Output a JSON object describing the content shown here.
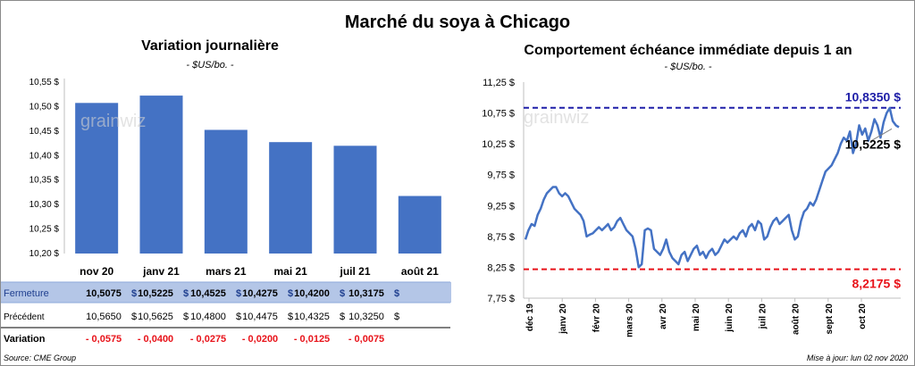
{
  "title": "Marché du soya à Chicago",
  "left_panel": {
    "title": "Variation journalière",
    "unit": "- $US/bo. -"
  },
  "right_panel": {
    "title": "Comportement échéance immédiate depuis 1 an",
    "unit": "- $US/bo. -"
  },
  "watermark": "grainwiz",
  "source": "Source: CME Group",
  "updated": "Mise à jour: lun 02 nov 2020",
  "colors": {
    "bar": "#4472c4",
    "line": "#4472c4",
    "high": "#1f1fa8",
    "low": "#e8131a",
    "negative": "#e8131a",
    "fermeture_bg": "#b4c6e7"
  },
  "chart_data": [
    {
      "type": "bar",
      "title": "Variation journalière",
      "categories": [
        "nov 20",
        "janv 21",
        "mars 21",
        "mai 21",
        "juil 21",
        "août 21"
      ],
      "values": [
        10.5075,
        10.5225,
        10.4525,
        10.4275,
        10.42,
        10.3175
      ],
      "ylim": [
        10.2,
        10.55
      ],
      "yticks": [
        "10,20 $",
        "10,25 $",
        "10,30 $",
        "10,35 $",
        "10,40 $",
        "10,45 $",
        "10,50 $",
        "10,55 $"
      ]
    },
    {
      "type": "line",
      "title": "Comportement échéance immédiate depuis 1 an",
      "xticks": [
        "déc 19",
        "janv 20",
        "févr 20",
        "mars 20",
        "avr 20",
        "mai 20",
        "juin 20",
        "juil 20",
        "août 20",
        "sept 20",
        "oct 20"
      ],
      "yticks": [
        "7,75 $",
        "8,25 $",
        "8,75 $",
        "9,25 $",
        "9,75 $",
        "10,25 $",
        "10,75 $",
        "11,25 $"
      ],
      "ylim": [
        7.75,
        11.25
      ],
      "high": {
        "label": "10,8350 $",
        "value": 10.835
      },
      "low": {
        "label": "8,2175 $",
        "value": 8.2175
      },
      "last": {
        "label": "10,5225 $",
        "value": 10.5225
      },
      "series_values": [
        8.7,
        8.85,
        8.95,
        8.92,
        9.1,
        9.2,
        9.35,
        9.45,
        9.5,
        9.55,
        9.55,
        9.45,
        9.4,
        9.45,
        9.4,
        9.3,
        9.2,
        9.15,
        9.1,
        9.0,
        8.75,
        8.78,
        8.8,
        8.85,
        8.9,
        8.85,
        8.9,
        8.95,
        8.85,
        8.9,
        9.0,
        9.05,
        8.95,
        8.85,
        8.8,
        8.75,
        8.55,
        8.25,
        8.3,
        8.85,
        8.88,
        8.85,
        8.55,
        8.5,
        8.45,
        8.55,
        8.7,
        8.5,
        8.4,
        8.35,
        8.3,
        8.45,
        8.5,
        8.35,
        8.45,
        8.55,
        8.6,
        8.45,
        8.5,
        8.4,
        8.5,
        8.55,
        8.45,
        8.5,
        8.6,
        8.7,
        8.65,
        8.7,
        8.75,
        8.7,
        8.8,
        8.85,
        8.75,
        8.9,
        8.95,
        8.85,
        9.0,
        8.95,
        8.7,
        8.75,
        8.9,
        9.0,
        9.05,
        8.95,
        9.0,
        9.05,
        9.1,
        8.85,
        8.7,
        8.75,
        9.0,
        9.15,
        9.2,
        9.3,
        9.25,
        9.35,
        9.5,
        9.65,
        9.8,
        9.85,
        9.9,
        10.0,
        10.1,
        10.25,
        10.35,
        10.3,
        10.45,
        10.1,
        10.25,
        10.55,
        10.4,
        10.5,
        10.3,
        10.45,
        10.65,
        10.55,
        10.35,
        10.6,
        10.75,
        10.83,
        10.62,
        10.55,
        10.52
      ]
    }
  ],
  "table": {
    "rows": [
      {
        "label": "Fermeture",
        "values": [
          "10,5075",
          "10,5225",
          "10,4525",
          "10,4275",
          "10,4200",
          "10,3175"
        ],
        "suffix": "$"
      },
      {
        "label": "Précédent",
        "values": [
          "10,5650",
          "10,5625",
          "10,4800",
          "10,4475",
          "10,4325",
          "10,3250"
        ],
        "suffix": "$"
      },
      {
        "label": "Variation",
        "values": [
          "- 0,0575",
          "- 0,0400",
          "- 0,0275",
          "- 0,0200",
          "- 0,0125",
          "- 0,0075"
        ],
        "suffix": ""
      }
    ]
  }
}
